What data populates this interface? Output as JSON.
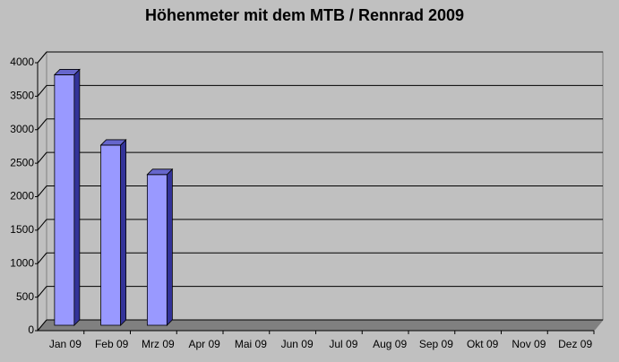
{
  "chart_data": {
    "type": "bar3d",
    "title": "Höhenmeter mit dem MTB / Rennrad 2009",
    "categories": [
      "Jan 09",
      "Feb 09",
      "Mrz 09",
      "Apr 09",
      "Mai 09",
      "Jun 09",
      "Jul 09",
      "Aug 09",
      "Sep 09",
      "Okt 09",
      "Nov 09",
      "Dez 09"
    ],
    "values": [
      3740,
      2690,
      2250,
      null,
      null,
      null,
      null,
      null,
      null,
      null,
      null,
      null
    ],
    "color": "#9999ff",
    "ylim": [
      0,
      4000
    ],
    "yticks": [
      0,
      500,
      1000,
      1500,
      2000,
      2500,
      3000,
      3500,
      4000
    ],
    "grid": true
  }
}
